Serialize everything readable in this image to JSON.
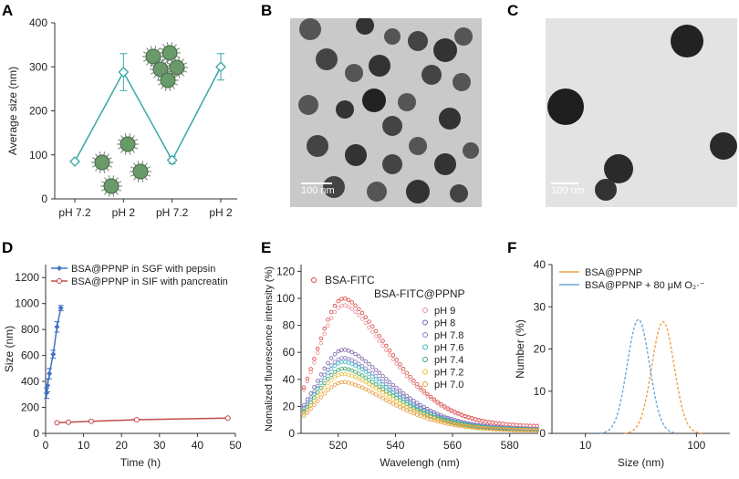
{
  "panels": {
    "A": "A",
    "B": "B",
    "C": "C",
    "D": "D",
    "E": "E",
    "F": "F"
  },
  "tem_b": {
    "scalebar": "100 nm"
  },
  "tem_c": {
    "scalebar": "100 nm"
  },
  "colors": {
    "teal": "#3aa6a6",
    "blue": "#3f73c9",
    "red": "#c44b4b",
    "orange": "#f0a24a",
    "lightblue": "#6aa7de"
  },
  "chart_data": [
    {
      "panel": "A",
      "type": "line",
      "ylabel": "Average size (nm)",
      "categories": [
        "pH 7.2",
        "pH 2",
        "pH 7.2",
        "pH 2"
      ],
      "yticks": [
        0,
        100,
        200,
        300,
        400
      ],
      "ylim": [
        0,
        400
      ],
      "series": [
        {
          "values": [
            85,
            288,
            88,
            300
          ],
          "errors": [
            0,
            42,
            8,
            30
          ],
          "color": "#3aa6a6"
        }
      ]
    },
    {
      "panel": "D",
      "type": "line",
      "xlabel": "Time (h)",
      "ylabel": "Size (nm)",
      "xlim": [
        0,
        50
      ],
      "ylim": [
        0,
        1300
      ],
      "xticks": [
        0,
        10,
        20,
        30,
        40,
        50
      ],
      "yticks": [
        0,
        200,
        400,
        600,
        800,
        1000,
        1200
      ],
      "legend": "top-left",
      "series": [
        {
          "name": "BSA@PPNP in SGF with pepsin",
          "color": "#3f73c9",
          "x": [
            0.25,
            0.5,
            1,
            2,
            3,
            4
          ],
          "y": [
            310,
            370,
            460,
            610,
            820,
            965
          ],
          "errors": [
            40,
            50,
            40,
            30,
            40,
            20
          ]
        },
        {
          "name": "BSA@PPNP in SIF with pancreatin",
          "color": "#c44b4b",
          "x": [
            3,
            6,
            12,
            24,
            48
          ],
          "y": [
            82,
            86,
            93,
            105,
            118
          ],
          "errors": [
            4,
            4,
            4,
            4,
            4
          ]
        }
      ]
    },
    {
      "panel": "E",
      "type": "scatter",
      "xlabel": "Wavelengh (nm)",
      "ylabel": "Nomalized fluorescence intensity (%)",
      "xlim": [
        507,
        590
      ],
      "ylim": [
        0,
        125
      ],
      "xticks": [
        520,
        540,
        560,
        580
      ],
      "yticks": [
        0,
        20,
        40,
        60,
        80,
        100,
        120
      ],
      "legend_title": "BSA-FITC@PPNP",
      "series": [
        {
          "name": "BSA-FITC",
          "peak": 100,
          "color": "#d9423a"
        },
        {
          "name": "pH 9",
          "peak": 95,
          "color": "#e8909a"
        },
        {
          "name": "pH 8",
          "peak": 62,
          "color": "#7b5ea7"
        },
        {
          "name": "pH 7.8",
          "peak": 56,
          "color": "#8b7fc8"
        },
        {
          "name": "pH 7.6",
          "peak": 53,
          "color": "#3fb6c4"
        },
        {
          "name": "pH 7.4",
          "peak": 48,
          "color": "#3fa36a"
        },
        {
          "name": "pH 7.2",
          "peak": 44,
          "color": "#e8c23a"
        },
        {
          "name": "pH 7.0",
          "peak": 38,
          "color": "#e89a3a"
        }
      ]
    },
    {
      "panel": "F",
      "type": "line",
      "xlabel": "Size (nm)",
      "ylabel": "Number (%)",
      "xscale": "log",
      "xlim": [
        5,
        200
      ],
      "ylim": [
        0,
        40
      ],
      "xticks": [
        10,
        100
      ],
      "yticks": [
        0,
        10,
        20,
        30,
        40
      ],
      "legend": "top-left",
      "series": [
        {
          "name": "BSA@PPNP",
          "color": "#f0a24a",
          "peak_x": 50,
          "peak_y": 26.5
        },
        {
          "name": "BSA@PPNP + 80 μM O₂·⁻",
          "color": "#6aa7de",
          "peak_x": 30,
          "peak_y": 27
        }
      ]
    }
  ]
}
